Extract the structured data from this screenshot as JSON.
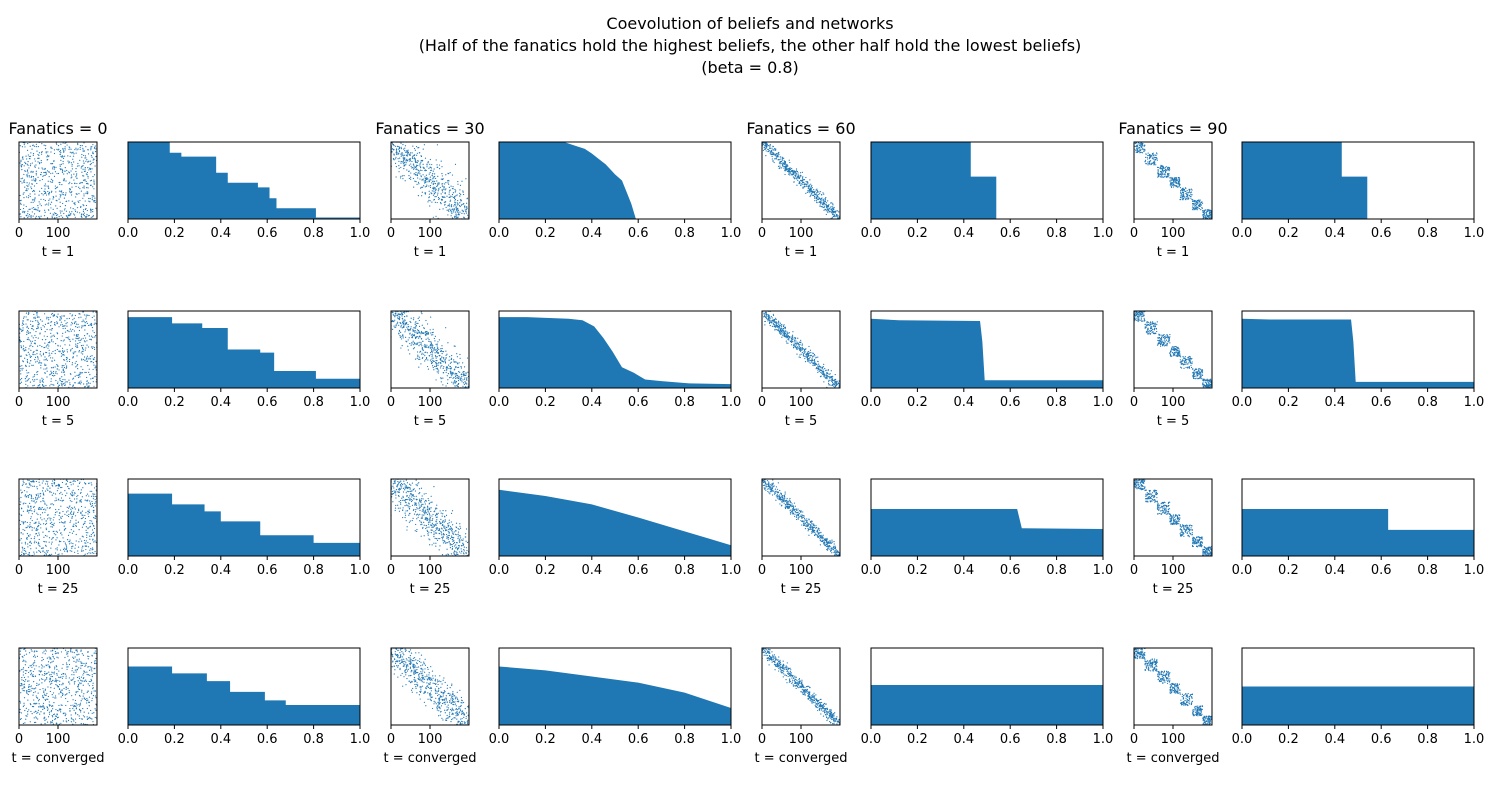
{
  "title": {
    "line1": "Coevolution of beliefs and networks",
    "line2": "(Half of the fanatics hold the highest beliefs, the other half hold the lowest beliefs)",
    "line3": "(beta = 0.8)"
  },
  "style": {
    "mark_color": "#1f77b4",
    "axis_color": "#000000"
  },
  "chart_data": {
    "type": "grid of scatter (adjacency) and area (sorted beliefs) panels",
    "columns": [
      {
        "title": "Fanatics = 0"
      },
      {
        "title": "Fanatics = 30"
      },
      {
        "title": "Fanatics = 60"
      },
      {
        "title": "Fanatics = 90"
      }
    ],
    "rows": [
      {
        "label": "t = 1"
      },
      {
        "label": "t = 5"
      },
      {
        "label": "t = 25"
      },
      {
        "label": "t = converged"
      }
    ],
    "scatter_axes": {
      "xlim": [
        0,
        200
      ],
      "ylim": [
        200,
        0
      ],
      "xticks": [
        0,
        100
      ],
      "yticks": [],
      "n_nodes": 200
    },
    "belief_axes": {
      "xlim": [
        0.0,
        1.0
      ],
      "ylim": [
        0.0,
        1.0
      ],
      "xticks": [
        0.0,
        0.2,
        0.4,
        0.6,
        0.8,
        1.0
      ],
      "yticks": []
    },
    "panels": [
      [
        {
          "scatter_structure": "random",
          "belief_curve": [
            [
              0.0,
              1.0
            ],
            [
              0.18,
              1.0
            ],
            [
              0.18,
              0.86
            ],
            [
              0.23,
              0.86
            ],
            [
              0.23,
              0.81
            ],
            [
              0.38,
              0.81
            ],
            [
              0.38,
              0.6
            ],
            [
              0.43,
              0.6
            ],
            [
              0.43,
              0.47
            ],
            [
              0.56,
              0.47
            ],
            [
              0.56,
              0.41
            ],
            [
              0.61,
              0.41
            ],
            [
              0.61,
              0.27
            ],
            [
              0.64,
              0.27
            ],
            [
              0.64,
              0.14
            ],
            [
              0.81,
              0.14
            ],
            [
              0.81,
              0.02
            ],
            [
              1.0,
              0.02
            ]
          ]
        },
        {
          "scatter_structure": "banded-wide",
          "belief_curve": [
            [
              0.0,
              1.0
            ],
            [
              0.28,
              1.0
            ],
            [
              0.33,
              0.95
            ],
            [
              0.37,
              0.91
            ],
            [
              0.4,
              0.85
            ],
            [
              0.43,
              0.78
            ],
            [
              0.46,
              0.71
            ],
            [
              0.5,
              0.58
            ],
            [
              0.53,
              0.5
            ],
            [
              0.55,
              0.35
            ],
            [
              0.57,
              0.2
            ],
            [
              0.585,
              0.05
            ],
            [
              0.59,
              0.0
            ]
          ]
        },
        {
          "scatter_structure": "banded-narrow",
          "belief_curve": [
            [
              0.0,
              1.0
            ],
            [
              0.43,
              1.0
            ],
            [
              0.43,
              0.55
            ],
            [
              0.54,
              0.55
            ],
            [
              0.54,
              0.0
            ]
          ]
        },
        {
          "scatter_structure": "clustered",
          "belief_curve": [
            [
              0.0,
              1.0
            ],
            [
              0.43,
              1.0
            ],
            [
              0.43,
              0.55
            ],
            [
              0.54,
              0.55
            ],
            [
              0.54,
              0.0
            ]
          ]
        }
      ],
      [
        {
          "scatter_structure": "random",
          "belief_curve": [
            [
              0.0,
              0.92
            ],
            [
              0.19,
              0.92
            ],
            [
              0.19,
              0.84
            ],
            [
              0.32,
              0.84
            ],
            [
              0.32,
              0.78
            ],
            [
              0.43,
              0.78
            ],
            [
              0.43,
              0.5
            ],
            [
              0.57,
              0.5
            ],
            [
              0.57,
              0.46
            ],
            [
              0.63,
              0.46
            ],
            [
              0.63,
              0.22
            ],
            [
              0.81,
              0.22
            ],
            [
              0.81,
              0.12
            ],
            [
              1.0,
              0.12
            ]
          ]
        },
        {
          "scatter_structure": "banded-wide",
          "belief_curve": [
            [
              0.0,
              0.92
            ],
            [
              0.12,
              0.92
            ],
            [
              0.3,
              0.9
            ],
            [
              0.36,
              0.88
            ],
            [
              0.41,
              0.8
            ],
            [
              0.45,
              0.65
            ],
            [
              0.49,
              0.47
            ],
            [
              0.53,
              0.27
            ],
            [
              0.58,
              0.2
            ],
            [
              0.63,
              0.11
            ],
            [
              0.7,
              0.09
            ],
            [
              0.82,
              0.06
            ],
            [
              1.0,
              0.05
            ]
          ]
        },
        {
          "scatter_structure": "banded-narrow",
          "belief_curve": [
            [
              0.0,
              0.9
            ],
            [
              0.12,
              0.88
            ],
            [
              0.47,
              0.87
            ],
            [
              0.48,
              0.6
            ],
            [
              0.49,
              0.1
            ],
            [
              1.0,
              0.1
            ]
          ]
        },
        {
          "scatter_structure": "clustered",
          "belief_curve": [
            [
              0.0,
              0.9
            ],
            [
              0.12,
              0.89
            ],
            [
              0.47,
              0.89
            ],
            [
              0.48,
              0.6
            ],
            [
              0.49,
              0.08
            ],
            [
              1.0,
              0.08
            ]
          ]
        }
      ],
      [
        {
          "scatter_structure": "random",
          "belief_curve": [
            [
              0.0,
              0.81
            ],
            [
              0.19,
              0.81
            ],
            [
              0.19,
              0.67
            ],
            [
              0.33,
              0.67
            ],
            [
              0.33,
              0.58
            ],
            [
              0.4,
              0.58
            ],
            [
              0.4,
              0.45
            ],
            [
              0.57,
              0.45
            ],
            [
              0.57,
              0.27
            ],
            [
              0.8,
              0.27
            ],
            [
              0.8,
              0.17
            ],
            [
              1.0,
              0.17
            ]
          ]
        },
        {
          "scatter_structure": "banded-wide",
          "belief_curve": [
            [
              0.0,
              0.86
            ],
            [
              0.2,
              0.78
            ],
            [
              0.4,
              0.67
            ],
            [
              0.6,
              0.5
            ],
            [
              0.8,
              0.32
            ],
            [
              0.9,
              0.23
            ],
            [
              1.0,
              0.14
            ]
          ]
        },
        {
          "scatter_structure": "banded-narrow",
          "belief_curve": [
            [
              0.0,
              0.61
            ],
            [
              0.63,
              0.61
            ],
            [
              0.65,
              0.36
            ],
            [
              1.0,
              0.35
            ]
          ]
        },
        {
          "scatter_structure": "clustered",
          "belief_curve": [
            [
              0.0,
              0.61
            ],
            [
              0.63,
              0.61
            ],
            [
              0.63,
              0.34
            ],
            [
              1.0,
              0.34
            ]
          ]
        }
      ],
      [
        {
          "scatter_structure": "random",
          "belief_curve": [
            [
              0.0,
              0.76
            ],
            [
              0.19,
              0.76
            ],
            [
              0.19,
              0.67
            ],
            [
              0.34,
              0.67
            ],
            [
              0.34,
              0.57
            ],
            [
              0.44,
              0.57
            ],
            [
              0.44,
              0.43
            ],
            [
              0.59,
              0.43
            ],
            [
              0.59,
              0.32
            ],
            [
              0.68,
              0.32
            ],
            [
              0.68,
              0.26
            ],
            [
              1.0,
              0.26
            ]
          ]
        },
        {
          "scatter_structure": "banded-wide",
          "belief_curve": [
            [
              0.0,
              0.76
            ],
            [
              0.2,
              0.71
            ],
            [
              0.4,
              0.63
            ],
            [
              0.6,
              0.55
            ],
            [
              0.8,
              0.42
            ],
            [
              1.0,
              0.22
            ]
          ]
        },
        {
          "scatter_structure": "banded-narrow",
          "belief_curve": [
            [
              0.0,
              0.52
            ],
            [
              1.0,
              0.52
            ]
          ]
        },
        {
          "scatter_structure": "clustered",
          "belief_curve": [
            [
              0.0,
              0.5
            ],
            [
              1.0,
              0.5
            ]
          ]
        }
      ]
    ]
  }
}
